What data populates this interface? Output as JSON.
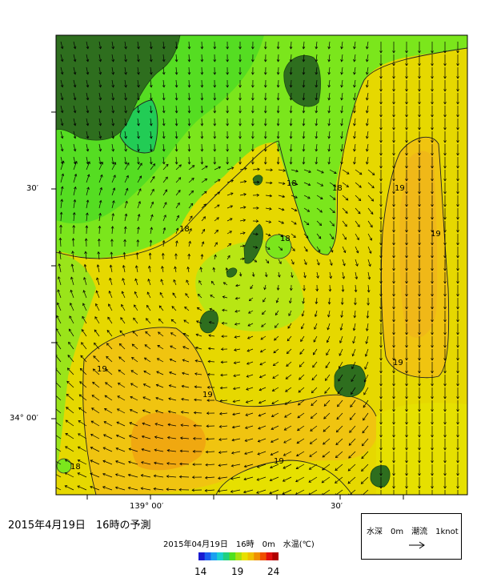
{
  "forecast_title": "2015年4月19日　16時の予測",
  "axes": {
    "lat_ticks": [
      {
        "label": "30′"
      },
      {
        "label": "34° 00′"
      }
    ],
    "lon_ticks": [
      {
        "label": "139° 00′"
      },
      {
        "label": "30′"
      }
    ]
  },
  "contour_labels": [
    {
      "text": "18"
    },
    {
      "text": "18"
    },
    {
      "text": "18"
    },
    {
      "text": "18"
    },
    {
      "text": "19"
    },
    {
      "text": "19"
    },
    {
      "text": "19"
    },
    {
      "text": "19"
    },
    {
      "text": "19"
    },
    {
      "text": "19"
    },
    {
      "text": "18"
    }
  ],
  "colorbar": {
    "title": "2015年04月19日　16時　0m　水温(℃)",
    "min_label": "14",
    "mid_label": "19",
    "max_label": "24",
    "colors": [
      "#1a1ad0",
      "#1a5ff0",
      "#1aa0f0",
      "#1ad0d0",
      "#20d080",
      "#50e020",
      "#a8e010",
      "#e8e000",
      "#f0c000",
      "#f09000",
      "#f05000",
      "#e01010",
      "#b00000"
    ]
  },
  "legend": {
    "text": "水深　0m　潮流　1knot",
    "arrow_glyph": "→"
  },
  "colors": {
    "land": "#2e6e1e",
    "temp_17": "#22cc55",
    "temp_17_5": "#55dd22",
    "temp_18": "#7be61c",
    "temp_18_5": "#b8e614",
    "temp_19": "#e6e000",
    "temp_19_5": "#f0c410",
    "temp_20": "#f0a810",
    "temp_21": "#f08010"
  }
}
